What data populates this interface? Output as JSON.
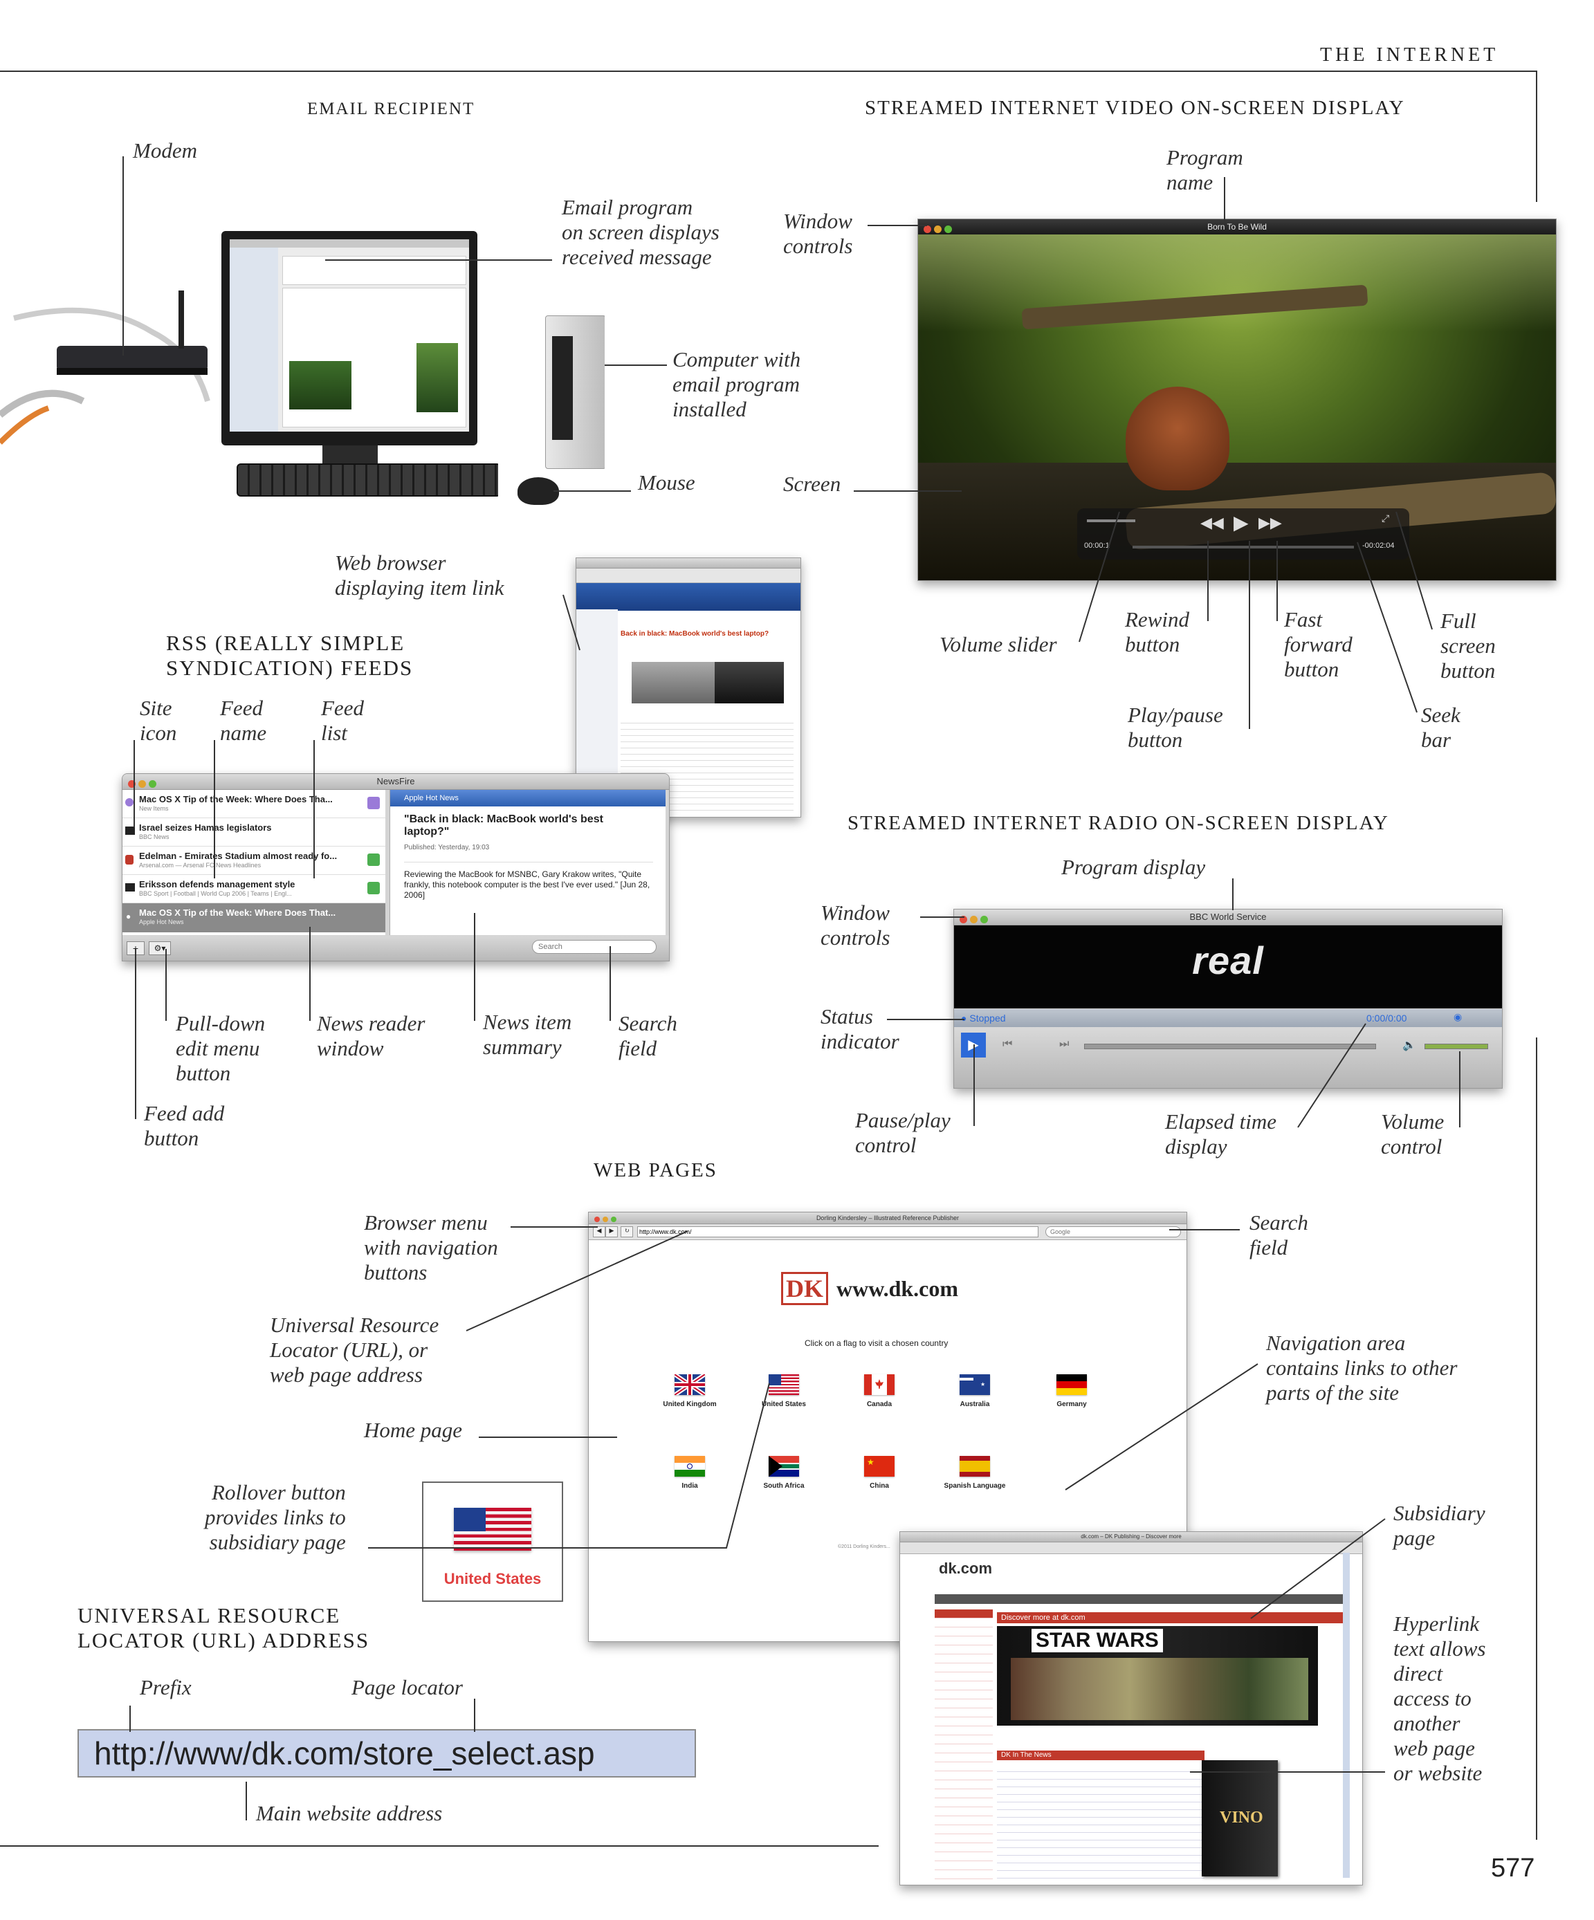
{
  "running_head": "THE INTERNET",
  "page_number": "577",
  "sections": {
    "email": "EMAIL RECIPIENT",
    "video": "STREAMED INTERNET VIDEO ON-SCREEN DISPLAY",
    "rss_line1": "RSS (REALLY SIMPLE",
    "rss_line2": "SYNDICATION) FEEDS",
    "radio": "STREAMED INTERNET RADIO ON-SCREEN DISPLAY",
    "web": "WEB PAGES",
    "url_line1": "UNIVERSAL RESOURCE",
    "url_line2": "LOCATOR (URL) ADDRESS"
  },
  "labels": {
    "modem": "Modem",
    "email_program": "Email program\non screen displays\nreceived message",
    "computer": "Computer with\nemail program\ninstalled",
    "mouse": "Mouse",
    "video_window_controls": "Window\ncontrols",
    "program_name": "Program\nname",
    "screen": "Screen",
    "volume_slider": "Volume slider",
    "rewind": "Rewind\nbutton",
    "fast_forward": "Fast\nforward\nbutton",
    "full_screen": "Full\nscreen\nbutton",
    "play_pause": "Play/pause\nbutton",
    "seek_bar": "Seek\nbar",
    "web_browser_item": "Web browser\ndisplaying item link",
    "site_icon": "Site\nicon",
    "feed_name": "Feed\nname",
    "feed_list": "Feed\nlist",
    "pulldown": "Pull-down\nedit menu\nbutton",
    "news_reader": "News reader\nwindow",
    "news_item": "News item\nsummary",
    "rss_search": "Search\nfield",
    "feed_add": "Feed add\nbutton",
    "program_display": "Program display",
    "radio_window_controls": "Window\ncontrols",
    "status_indicator": "Status\nindicator",
    "pause_play_control": "Pause/play\ncontrol",
    "elapsed_time": "Elapsed time\ndisplay",
    "volume_control": "Volume\ncontrol",
    "browser_menu": "Browser menu\nwith navigation\nbuttons",
    "web_search": "Search\nfield",
    "url_label": "Universal Resource\nLocator (URL), or\nweb page address",
    "home_page": "Home page",
    "navigation_area": "Navigation area\ncontains links to other\nparts of  the site",
    "rollover": "Rollover button\nprovides links to\nsubsidiary page",
    "subsidiary": "Subsidiary\npage",
    "hyperlink": "Hyperlink\ntext allows\ndirect\naccess to\nanother\nweb page\nor website",
    "prefix": "Prefix",
    "page_locator": "Page locator",
    "main_address": "Main website address"
  },
  "url_example": {
    "prefix": "http://",
    "main": "www/dk.com",
    "locator": "/store_select.asp"
  },
  "video_player": {
    "title": "Born To Be Wild",
    "elapsed": "00:00:1",
    "remaining": "-00:02:04"
  },
  "newsfire": {
    "title": "NewsFire",
    "feeds": [
      {
        "title": "Mac OS X Tip of the Week: Where Does Tha...",
        "source": "New Items"
      },
      {
        "title": "Israel seizes Hamas legislators",
        "source": "BBC News"
      },
      {
        "title": "Edelman - Emirates Stadium almost ready fo...",
        "source": "Arsenal.com — Arsenal FC News Headlines"
      },
      {
        "title": "Eriksson defends management style",
        "source": "BBC Sport | Football | World Cup 2006 | Teams | Engl..."
      },
      {
        "title": "Mac OS X Tip of the Week: Where Does That...",
        "source": "Apple Hot News"
      }
    ],
    "panel_title": "Apple Hot News",
    "headline": "\"Back in black: MacBook world's best laptop?\"",
    "published": "Published: Yesterday, 19:03",
    "summary": "Reviewing the MacBook for MSNBC, Gary Krakow writes, \"Quite frankly, this notebook computer is the best I've ever used.\" [Jun 28, 2006]",
    "search_placeholder": "Search",
    "browser_headline": "Back in black: MacBook world's best laptop?"
  },
  "radio_player": {
    "title": "BBC World Service",
    "logo": "real",
    "status": "Stopped",
    "time": "0:00/0:00"
  },
  "dk_home": {
    "title": "Dorling Kindersley – Illustrated Reference Publisher",
    "url": "http://www.dk.com/",
    "search_placeholder": "Google",
    "logo": "DK",
    "site_name": "www.dk.com",
    "instruction": "Click on a flag to visit a chosen country",
    "countries": [
      "United Kingdom",
      "United States",
      "Canada",
      "Australia",
      "Germany",
      "India",
      "South Africa",
      "China",
      "Spanish Language"
    ],
    "footer": "©2011 Dorling Kinders..."
  },
  "rollover_button": {
    "label": "United States"
  },
  "dk_sub": {
    "title": "dk.com – DK Publishing – Discover more",
    "logo": "dk.com",
    "discover": "Discover more at dk.com",
    "banner": "STAR WARS",
    "news": "DK In The News",
    "book": "VINO"
  }
}
